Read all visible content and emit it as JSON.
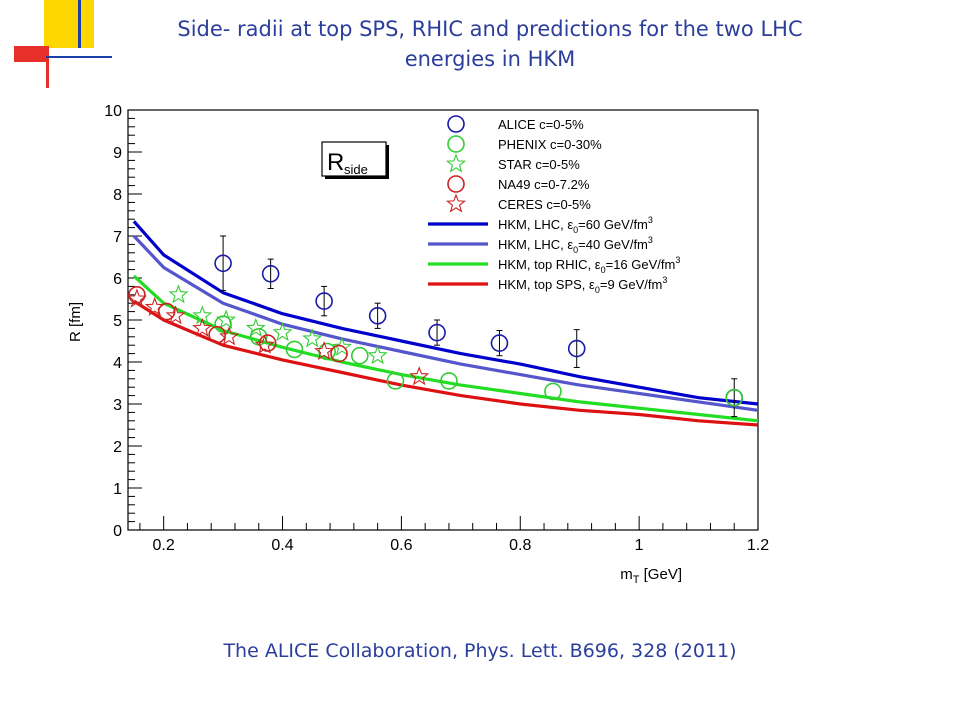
{
  "slide": {
    "title_line1": "Side- radii at top SPS, RHIC and predictions for the two LHC",
    "title_line2": "energies in HKM",
    "citation": "The ALICE Collaboration, Phys. Lett. B696, 328 (2011)"
  },
  "colors": {
    "title": "#2c3e9c",
    "deco_yellow": "#ffd700",
    "deco_red": "#e8302a",
    "deco_blue": "#1a3fa6"
  },
  "chart_data": {
    "type": "line",
    "xlabel_main": "m",
    "xlabel_sub": "T",
    "xlabel_rest": " [GeV]",
    "ylabel": "R [fm]",
    "label_box": {
      "main": "R",
      "sub": "side"
    },
    "xlim": [
      0.14,
      1.2
    ],
    "ylim": [
      0,
      10
    ],
    "xticks": [
      "0.2",
      "0.4",
      "0.6",
      "0.8",
      "1",
      "1.2"
    ],
    "xtick_values": [
      0.2,
      0.4,
      0.6,
      0.8,
      1.0,
      1.2
    ],
    "yticks": [
      "0",
      "1",
      "2",
      "3",
      "4",
      "5",
      "6",
      "7",
      "8",
      "9",
      "10"
    ],
    "ytick_values": [
      0,
      1,
      2,
      3,
      4,
      5,
      6,
      7,
      8,
      9,
      10
    ],
    "series": [
      {
        "name": "ALICE c=0-5%",
        "marker": "circle",
        "color": "#1a1aa8",
        "points": [
          [
            0.3,
            6.35,
            0.65
          ],
          [
            0.38,
            6.1,
            0.35
          ],
          [
            0.47,
            5.45,
            0.35
          ],
          [
            0.56,
            5.1,
            0.3
          ],
          [
            0.66,
            4.7,
            0.3
          ],
          [
            0.765,
            4.45,
            0.3
          ],
          [
            0.895,
            4.32,
            0.45
          ],
          [
            1.16,
            3.15,
            0.45
          ]
        ]
      },
      {
        "name": "PHENIX c=0-30%",
        "marker": "circle",
        "color": "#33cc33",
        "points": [
          [
            0.3,
            4.9
          ],
          [
            0.36,
            4.6
          ],
          [
            0.42,
            4.3
          ],
          [
            0.475,
            4.25
          ],
          [
            0.53,
            4.15
          ],
          [
            0.59,
            3.55
          ],
          [
            0.68,
            3.55
          ],
          [
            0.855,
            3.3
          ],
          [
            1.16,
            3.15
          ]
        ]
      },
      {
        "name": "STAR c=0-5%",
        "marker": "star",
        "color": "#33cc33",
        "points": [
          [
            0.225,
            5.6
          ],
          [
            0.265,
            5.1
          ],
          [
            0.305,
            5.0
          ],
          [
            0.355,
            4.8
          ],
          [
            0.4,
            4.7
          ],
          [
            0.45,
            4.55
          ],
          [
            0.5,
            4.35
          ],
          [
            0.56,
            4.15
          ]
        ]
      },
      {
        "name": "NA49 c=0-7.2%",
        "marker": "circle",
        "color": "#cc2222",
        "points": [
          [
            0.155,
            5.6
          ],
          [
            0.205,
            5.2
          ],
          [
            0.29,
            4.65
          ],
          [
            0.375,
            4.45
          ],
          [
            0.495,
            4.2
          ]
        ]
      },
      {
        "name": "CERES c=0-5%",
        "marker": "star",
        "color": "#cc2222",
        "points": [
          [
            0.155,
            5.5
          ],
          [
            0.185,
            5.3
          ],
          [
            0.22,
            5.1
          ],
          [
            0.265,
            4.8
          ],
          [
            0.31,
            4.6
          ],
          [
            0.37,
            4.4
          ],
          [
            0.47,
            4.25
          ],
          [
            0.63,
            3.65
          ]
        ]
      }
    ],
    "curves": [
      {
        "name_prefix": "HKM, LHC, ",
        "eps": "ε",
        "eps_sub": "0",
        "name_suffix": "=60 GeV/fm",
        "sup": "3",
        "color": "#0000cc",
        "points": [
          [
            0.15,
            7.35
          ],
          [
            0.2,
            6.55
          ],
          [
            0.3,
            5.65
          ],
          [
            0.4,
            5.15
          ],
          [
            0.5,
            4.8
          ],
          [
            0.6,
            4.5
          ],
          [
            0.7,
            4.2
          ],
          [
            0.8,
            3.95
          ],
          [
            0.9,
            3.65
          ],
          [
            1.0,
            3.4
          ],
          [
            1.1,
            3.15
          ],
          [
            1.2,
            3.0
          ]
        ]
      },
      {
        "name_prefix": "HKM, LHC, ",
        "eps": "ε",
        "eps_sub": "0",
        "name_suffix": "=40 GeV/fm",
        "sup": "3",
        "color": "#5555cc",
        "points": [
          [
            0.15,
            7.0
          ],
          [
            0.2,
            6.25
          ],
          [
            0.3,
            5.4
          ],
          [
            0.4,
            4.9
          ],
          [
            0.5,
            4.55
          ],
          [
            0.6,
            4.25
          ],
          [
            0.7,
            3.95
          ],
          [
            0.8,
            3.7
          ],
          [
            0.9,
            3.45
          ],
          [
            1.0,
            3.25
          ],
          [
            1.1,
            3.05
          ],
          [
            1.2,
            2.85
          ]
        ]
      },
      {
        "name_prefix": "HKM, top RHIC, ",
        "eps": "ε",
        "eps_sub": "0",
        "name_suffix": "=16 GeV/fm",
        "sup": "3",
        "color": "#22dd22",
        "points": [
          [
            0.15,
            6.05
          ],
          [
            0.2,
            5.4
          ],
          [
            0.3,
            4.75
          ],
          [
            0.4,
            4.35
          ],
          [
            0.5,
            4.0
          ],
          [
            0.6,
            3.7
          ],
          [
            0.7,
            3.45
          ],
          [
            0.8,
            3.25
          ],
          [
            0.9,
            3.05
          ],
          [
            1.0,
            2.9
          ],
          [
            1.1,
            2.75
          ],
          [
            1.2,
            2.6
          ]
        ]
      },
      {
        "name_prefix": "HKM, top SPS, ",
        "eps": "ε",
        "eps_sub": "0",
        "name_suffix": "=9 GeV/fm",
        "sup": "3",
        "color": "#dd1111",
        "points": [
          [
            0.15,
            5.45
          ],
          [
            0.2,
            5.0
          ],
          [
            0.3,
            4.4
          ],
          [
            0.4,
            4.05
          ],
          [
            0.5,
            3.75
          ],
          [
            0.6,
            3.45
          ],
          [
            0.7,
            3.2
          ],
          [
            0.8,
            3.0
          ],
          [
            0.9,
            2.85
          ],
          [
            1.0,
            2.75
          ],
          [
            1.1,
            2.6
          ],
          [
            1.2,
            2.5
          ]
        ]
      }
    ],
    "grid": false,
    "legend": "top-right"
  }
}
